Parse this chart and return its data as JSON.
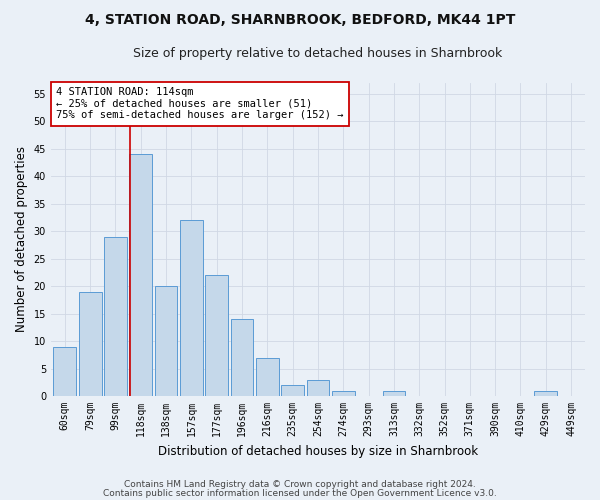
{
  "title": "4, STATION ROAD, SHARNBROOK, BEDFORD, MK44 1PT",
  "subtitle": "Size of property relative to detached houses in Sharnbrook",
  "xlabel": "Distribution of detached houses by size in Sharnbrook",
  "ylabel": "Number of detached properties",
  "categories": [
    "60sqm",
    "79sqm",
    "99sqm",
    "118sqm",
    "138sqm",
    "157sqm",
    "177sqm",
    "196sqm",
    "216sqm",
    "235sqm",
    "254sqm",
    "274sqm",
    "293sqm",
    "313sqm",
    "332sqm",
    "352sqm",
    "371sqm",
    "390sqm",
    "410sqm",
    "429sqm",
    "449sqm"
  ],
  "values": [
    9,
    19,
    29,
    44,
    20,
    32,
    22,
    14,
    7,
    2,
    3,
    1,
    0,
    1,
    0,
    0,
    0,
    0,
    0,
    1,
    0
  ],
  "bar_color": "#c5d8ea",
  "bar_edge_color": "#5b9bd5",
  "grid_color": "#d0d8e4",
  "background_color": "#eaf0f7",
  "vline_color": "#cc0000",
  "vline_x": 2.575,
  "annotation_text": "4 STATION ROAD: 114sqm\n← 25% of detached houses are smaller (51)\n75% of semi-detached houses are larger (152) →",
  "annotation_box_color": "#ffffff",
  "annotation_box_edge": "#cc0000",
  "footer1": "Contains HM Land Registry data © Crown copyright and database right 2024.",
  "footer2": "Contains public sector information licensed under the Open Government Licence v3.0.",
  "ylim": [
    0,
    57
  ],
  "yticks": [
    0,
    5,
    10,
    15,
    20,
    25,
    30,
    35,
    40,
    45,
    50,
    55
  ],
  "title_fontsize": 10,
  "subtitle_fontsize": 9,
  "label_fontsize": 8.5,
  "tick_fontsize": 7,
  "annot_fontsize": 7.5,
  "footer_fontsize": 6.5
}
